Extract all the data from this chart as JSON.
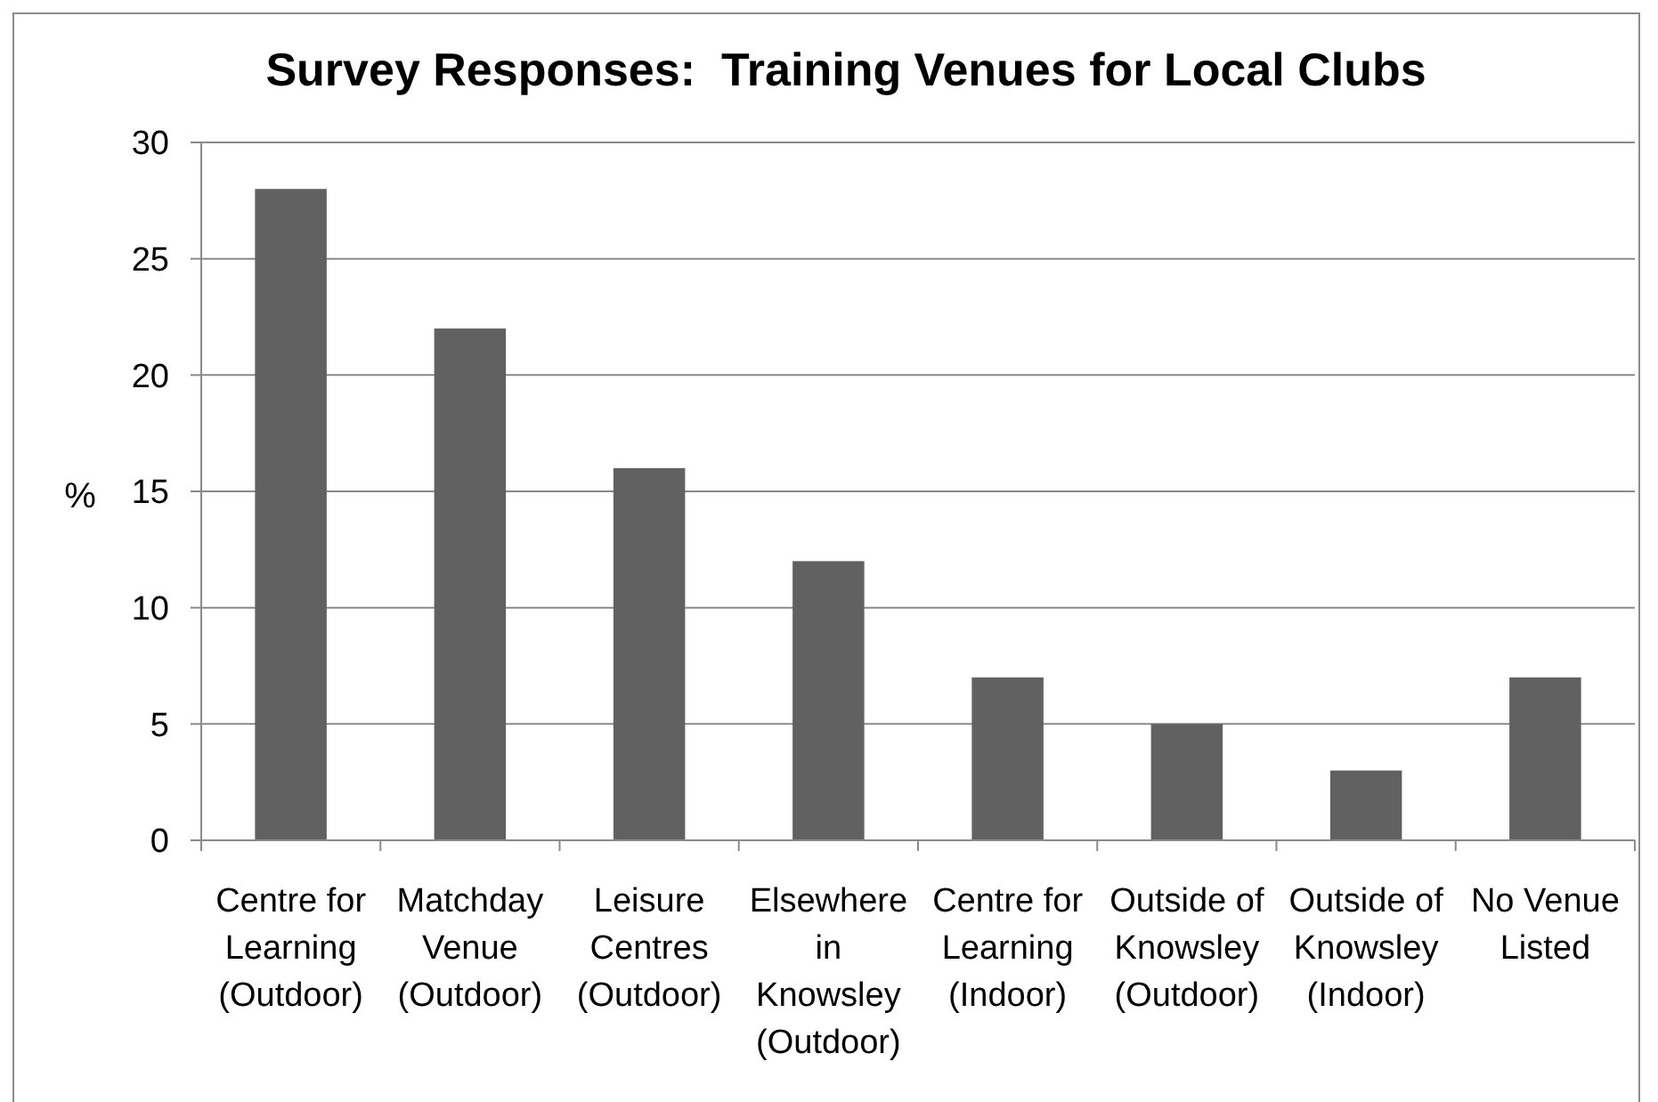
{
  "chart_data": {
    "type": "bar",
    "title": "Survey Responses:  Training Venues for Local Clubs",
    "ylabel": "%",
    "categories": [
      "Centre for\nLearning\n(Outdoor)",
      "Matchday\nVenue\n(Outdoor)",
      "Leisure\nCentres\n(Outdoor)",
      "Elsewhere\nin\nKnowsley\n(Outdoor)",
      "Centre for\nLearning\n(Indoor)",
      "Outside of\nKnowsley\n(Outdoor)",
      "Outside of\nKnowsley\n(Indoor)",
      "No Venue\nListed"
    ],
    "values": [
      28,
      22,
      16,
      12,
      7,
      5,
      3,
      7
    ],
    "color": "#616161",
    "ylim": [
      0,
      30
    ],
    "yticks": [
      0,
      5,
      10,
      15,
      20,
      25,
      30
    ],
    "grid": "y"
  }
}
